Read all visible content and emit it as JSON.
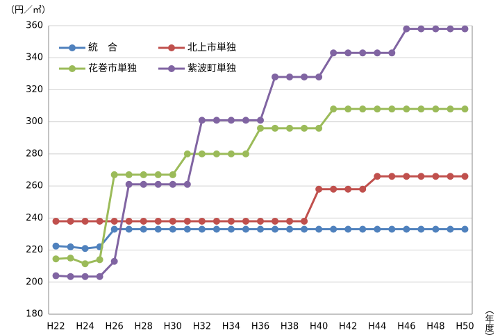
{
  "chart_data": {
    "type": "line",
    "y_label": "（円／㎥）",
    "x_label": "（年度）",
    "categories": [
      "H22",
      null,
      "H24",
      null,
      "H26",
      null,
      "H28",
      null,
      "H30",
      null,
      "H32",
      null,
      "H34",
      null,
      "H36",
      null,
      "H38",
      null,
      "H40",
      null,
      "H42",
      null,
      "H44",
      null,
      "H46",
      null,
      "H48",
      null,
      "H50"
    ],
    "series": [
      {
        "name": "統　合",
        "color": "#4f81bd",
        "values": [
          222.5,
          222,
          221,
          222,
          233,
          233,
          233,
          233,
          233,
          233,
          233,
          233,
          233,
          233,
          233,
          233,
          233,
          233,
          233,
          233,
          233,
          233,
          233,
          233,
          233,
          233,
          233,
          233,
          233
        ]
      },
      {
        "name": "北上市単独",
        "color": "#c0504d",
        "values": [
          238,
          238,
          238,
          238,
          238,
          238,
          238,
          238,
          238,
          238,
          238,
          238,
          238,
          238,
          238,
          238,
          238,
          238,
          258,
          258,
          258,
          258,
          266,
          266,
          266,
          266,
          266,
          266,
          266
        ]
      },
      {
        "name": "花巻市単独",
        "color": "#9bbb59",
        "values": [
          214.5,
          215,
          211.5,
          214,
          267,
          267,
          267,
          267,
          267,
          280,
          280,
          280,
          280,
          280,
          296,
          296,
          296,
          296,
          296,
          308,
          308,
          308,
          308,
          308,
          308,
          308,
          308,
          308,
          308
        ]
      },
      {
        "name": "紫波町単独",
        "color": "#8064a2",
        "values": [
          204,
          203.5,
          203.5,
          203.5,
          213,
          261,
          261,
          261,
          261,
          261,
          301,
          301,
          301,
          301,
          301,
          328,
          328,
          328,
          328,
          343,
          343,
          343,
          343,
          343,
          358,
          358,
          358,
          358,
          358
        ]
      }
    ],
    "ylim": [
      180,
      360
    ],
    "yticks": [
      180,
      200,
      220,
      240,
      260,
      280,
      300,
      320,
      340,
      360
    ],
    "grid": true,
    "legend": "top-left"
  }
}
